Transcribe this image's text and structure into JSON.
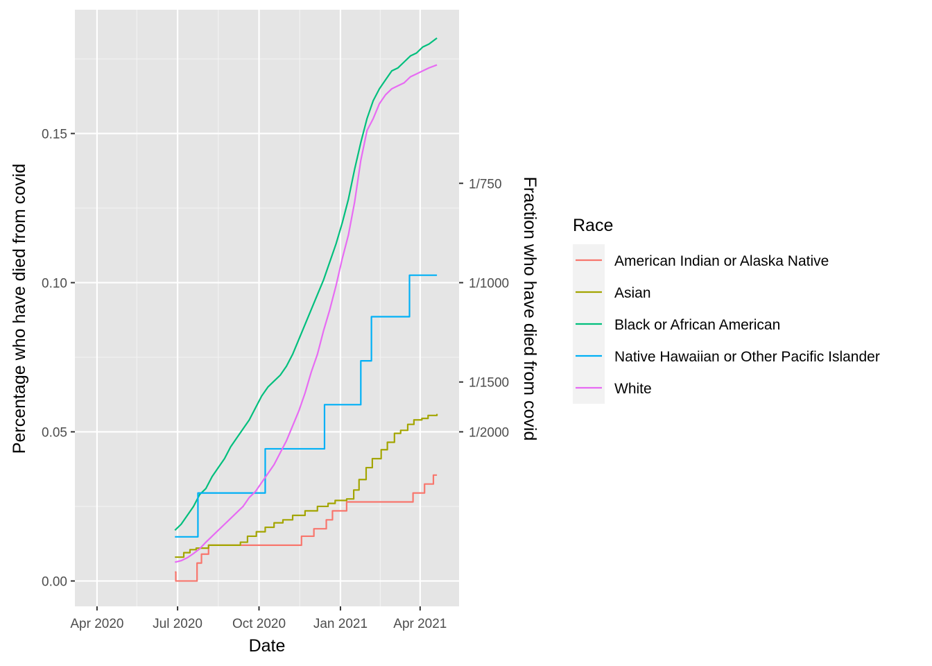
{
  "chart_data": {
    "type": "line",
    "xlabel": "Date",
    "ylabel": "Percentage who have died from covid",
    "ylabel_secondary": "Fraction who have died from covid",
    "xlim": [
      "2020-03-07",
      "2021-05-15"
    ],
    "ylim": [
      -0.0085,
      0.1915
    ],
    "x_ticks": [
      {
        "date": "2020-04-01",
        "label": "Apr 2020"
      },
      {
        "date": "2020-07-01",
        "label": "Jul 2020"
      },
      {
        "date": "2020-10-01",
        "label": "Oct 2020"
      },
      {
        "date": "2021-01-01",
        "label": "Jan 2021"
      },
      {
        "date": "2021-04-01",
        "label": "Apr 2021"
      }
    ],
    "x_minor_ticks": [
      "2020-05-16",
      "2020-08-16",
      "2020-11-16",
      "2021-02-15",
      "2021-05-16"
    ],
    "y_ticks": [
      {
        "value": 0.0,
        "label": "0.00"
      },
      {
        "value": 0.05,
        "label": "0.05"
      },
      {
        "value": 0.1,
        "label": "0.10"
      },
      {
        "value": 0.15,
        "label": "0.15"
      }
    ],
    "y_minor_ticks": [
      0.025,
      0.075,
      0.125,
      0.175
    ],
    "y2_ticks": [
      {
        "value": 0.1333,
        "label": "1/750"
      },
      {
        "value": 0.1,
        "label": "1/1000"
      },
      {
        "value": 0.0667,
        "label": "1/1500"
      },
      {
        "value": 0.05,
        "label": "1/2000"
      }
    ],
    "grid": true,
    "legend": {
      "title": "Race",
      "position": "right"
    },
    "series": [
      {
        "name": "American Indian or Alaska Native",
        "color": "#F8766D",
        "step": true,
        "points": [
          [
            "2020-06-28",
            0.003
          ],
          [
            "2020-06-29",
            0.0
          ],
          [
            "2020-07-22",
            0.0
          ],
          [
            "2020-07-23",
            0.006
          ],
          [
            "2020-07-28",
            0.009
          ],
          [
            "2020-08-05",
            0.012
          ],
          [
            "2020-11-17",
            0.012
          ],
          [
            "2020-11-18",
            0.015
          ],
          [
            "2020-12-02",
            0.0175
          ],
          [
            "2020-12-16",
            0.0205
          ],
          [
            "2020-12-23",
            0.0235
          ],
          [
            "2021-01-08",
            0.0265
          ],
          [
            "2021-03-23",
            0.0265
          ],
          [
            "2021-03-24",
            0.0295
          ],
          [
            "2021-04-06",
            0.0325
          ],
          [
            "2021-04-16",
            0.0355
          ],
          [
            "2021-04-20",
            0.0355
          ]
        ]
      },
      {
        "name": "Asian",
        "color": "#A3A500",
        "step": true,
        "points": [
          [
            "2020-06-28",
            0.008
          ],
          [
            "2020-07-05",
            0.008
          ],
          [
            "2020-07-08",
            0.0095
          ],
          [
            "2020-07-15",
            0.0105
          ],
          [
            "2020-07-22",
            0.011
          ],
          [
            "2020-08-05",
            0.012
          ],
          [
            "2020-09-10",
            0.013
          ],
          [
            "2020-09-18",
            0.015
          ],
          [
            "2020-09-28",
            0.0165
          ],
          [
            "2020-10-08",
            0.018
          ],
          [
            "2020-10-18",
            0.0195
          ],
          [
            "2020-10-28",
            0.0205
          ],
          [
            "2020-11-08",
            0.022
          ],
          [
            "2020-11-22",
            0.0235
          ],
          [
            "2020-12-06",
            0.025
          ],
          [
            "2020-12-18",
            0.026
          ],
          [
            "2020-12-26",
            0.027
          ],
          [
            "2021-01-08",
            0.0275
          ],
          [
            "2021-01-16",
            0.0305
          ],
          [
            "2021-01-22",
            0.034
          ],
          [
            "2021-01-30",
            0.038
          ],
          [
            "2021-02-06",
            0.041
          ],
          [
            "2021-02-16",
            0.044
          ],
          [
            "2021-02-23",
            0.0465
          ],
          [
            "2021-03-03",
            0.0495
          ],
          [
            "2021-03-10",
            0.0505
          ],
          [
            "2021-03-18",
            0.0525
          ],
          [
            "2021-03-25",
            0.054
          ],
          [
            "2021-04-03",
            0.0545
          ],
          [
            "2021-04-10",
            0.0555
          ],
          [
            "2021-04-20",
            0.056
          ]
        ]
      },
      {
        "name": "Black or African American",
        "color": "#00BF7D",
        "step": false,
        "points": [
          [
            "2020-06-28",
            0.017
          ],
          [
            "2020-07-05",
            0.019
          ],
          [
            "2020-07-12",
            0.022
          ],
          [
            "2020-07-19",
            0.025
          ],
          [
            "2020-07-26",
            0.029
          ],
          [
            "2020-08-02",
            0.031
          ],
          [
            "2020-08-09",
            0.035
          ],
          [
            "2020-08-16",
            0.038
          ],
          [
            "2020-08-23",
            0.041
          ],
          [
            "2020-08-30",
            0.045
          ],
          [
            "2020-09-06",
            0.048
          ],
          [
            "2020-09-13",
            0.051
          ],
          [
            "2020-09-20",
            0.054
          ],
          [
            "2020-09-27",
            0.058
          ],
          [
            "2020-10-04",
            0.062
          ],
          [
            "2020-10-11",
            0.065
          ],
          [
            "2020-10-18",
            0.067
          ],
          [
            "2020-10-25",
            0.069
          ],
          [
            "2020-11-01",
            0.072
          ],
          [
            "2020-11-08",
            0.076
          ],
          [
            "2020-11-15",
            0.081
          ],
          [
            "2020-11-22",
            0.086
          ],
          [
            "2020-11-29",
            0.091
          ],
          [
            "2020-12-06",
            0.096
          ],
          [
            "2020-12-13",
            0.101
          ],
          [
            "2020-12-20",
            0.107
          ],
          [
            "2020-12-27",
            0.113
          ],
          [
            "2021-01-03",
            0.12
          ],
          [
            "2021-01-10",
            0.128
          ],
          [
            "2021-01-17",
            0.138
          ],
          [
            "2021-01-24",
            0.147
          ],
          [
            "2021-01-31",
            0.155
          ],
          [
            "2021-02-07",
            0.161
          ],
          [
            "2021-02-14",
            0.165
          ],
          [
            "2021-02-21",
            0.168
          ],
          [
            "2021-02-28",
            0.171
          ],
          [
            "2021-03-07",
            0.172
          ],
          [
            "2021-03-14",
            0.174
          ],
          [
            "2021-03-21",
            0.176
          ],
          [
            "2021-03-28",
            0.177
          ],
          [
            "2021-04-04",
            0.179
          ],
          [
            "2021-04-11",
            0.18
          ],
          [
            "2021-04-20",
            0.182
          ]
        ]
      },
      {
        "name": "Native Hawaiian or Other Pacific Islander",
        "color": "#00B0F6",
        "step": true,
        "points": [
          [
            "2020-06-28",
            0.0148
          ],
          [
            "2020-07-24",
            0.0295
          ],
          [
            "2020-10-08",
            0.0443
          ],
          [
            "2020-12-14",
            0.0591
          ],
          [
            "2021-01-24",
            0.0738
          ],
          [
            "2021-02-05",
            0.0886
          ],
          [
            "2021-03-20",
            0.1025
          ],
          [
            "2021-04-20",
            0.1025
          ]
        ]
      },
      {
        "name": "White",
        "color": "#E76BF3",
        "step": false,
        "points": [
          [
            "2020-06-28",
            0.0063
          ],
          [
            "2020-07-05",
            0.0068
          ],
          [
            "2020-07-12",
            0.0078
          ],
          [
            "2020-07-19",
            0.0092
          ],
          [
            "2020-07-26",
            0.0108
          ],
          [
            "2020-08-02",
            0.013
          ],
          [
            "2020-08-09",
            0.015
          ],
          [
            "2020-08-16",
            0.017
          ],
          [
            "2020-08-23",
            0.019
          ],
          [
            "2020-08-30",
            0.021
          ],
          [
            "2020-09-06",
            0.023
          ],
          [
            "2020-09-13",
            0.025
          ],
          [
            "2020-09-20",
            0.028
          ],
          [
            "2020-09-27",
            0.03
          ],
          [
            "2020-10-04",
            0.033
          ],
          [
            "2020-10-11",
            0.036
          ],
          [
            "2020-10-18",
            0.039
          ],
          [
            "2020-10-25",
            0.043
          ],
          [
            "2020-11-01",
            0.047
          ],
          [
            "2020-11-08",
            0.052
          ],
          [
            "2020-11-15",
            0.057
          ],
          [
            "2020-11-22",
            0.063
          ],
          [
            "2020-11-29",
            0.07
          ],
          [
            "2020-12-06",
            0.076
          ],
          [
            "2020-12-13",
            0.084
          ],
          [
            "2020-12-20",
            0.091
          ],
          [
            "2020-12-27",
            0.099
          ],
          [
            "2021-01-03",
            0.108
          ],
          [
            "2021-01-10",
            0.116
          ],
          [
            "2021-01-17",
            0.127
          ],
          [
            "2021-01-24",
            0.141
          ],
          [
            "2021-01-31",
            0.151
          ],
          [
            "2021-02-07",
            0.155
          ],
          [
            "2021-02-14",
            0.16
          ],
          [
            "2021-02-21",
            0.163
          ],
          [
            "2021-02-28",
            0.165
          ],
          [
            "2021-03-07",
            0.166
          ],
          [
            "2021-03-14",
            0.167
          ],
          [
            "2021-03-21",
            0.169
          ],
          [
            "2021-03-28",
            0.17
          ],
          [
            "2021-04-04",
            0.171
          ],
          [
            "2021-04-11",
            0.172
          ],
          [
            "2021-04-20",
            0.173
          ]
        ]
      }
    ]
  }
}
